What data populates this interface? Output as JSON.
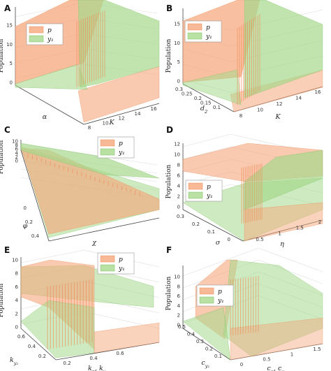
{
  "colors": {
    "p_fill": "#f5a77c",
    "p_edge": "#f08a55",
    "y_fill": "#a6d98c",
    "y_edge": "#7cc062"
  },
  "legend": {
    "p": "p",
    "y": "y₁"
  },
  "chart_data": [
    {
      "panel": "A",
      "type": "area",
      "ylabel": "Population",
      "xlabel": "α",
      "zlabel": "K",
      "z_ticks": [
        "0",
        "5",
        "10",
        "15"
      ],
      "y_ticks": [
        "8",
        "10",
        "12",
        "14",
        "16"
      ],
      "series": [
        {
          "name": "p",
          "description_values": {
            "low_K": 15,
            "high_K": 0.5
          }
        },
        {
          "name": "y₁",
          "description_values": {
            "low_K": 0,
            "high_K": 15
          }
        }
      ]
    },
    {
      "panel": "B",
      "type": "area",
      "ylabel": "Population",
      "xlabel": "d₂",
      "zlabel": "K",
      "z_ticks": [
        "0",
        "5",
        "10",
        "15"
      ],
      "x_ticks": [
        "0.1",
        "0.15",
        "0.2",
        "0.25",
        "0.3"
      ],
      "y_ticks": [
        "8",
        "10",
        "12",
        "14",
        "16"
      ],
      "series": [
        {
          "name": "p"
        },
        {
          "name": "y₁"
        }
      ]
    },
    {
      "panel": "C",
      "type": "area",
      "ylabel": "Population",
      "xlabel": "χ",
      "zlabel": "φ",
      "z_ticks": [
        "0",
        "2",
        "4",
        "6",
        "8",
        "10"
      ],
      "x_ticks": [
        "0",
        "0.2",
        "0.4"
      ],
      "series": [
        {
          "name": "p"
        },
        {
          "name": "y₁"
        }
      ]
    },
    {
      "panel": "D",
      "type": "area",
      "ylabel": "Population",
      "xlabel": "σ",
      "zlabel": "η",
      "z_ticks": [
        "0",
        "2",
        "4",
        "6",
        "8",
        "10",
        "12"
      ],
      "x_ticks": [
        "0",
        "0.1",
        "0.2",
        "0.3"
      ],
      "y_ticks": [
        "0.5",
        "1",
        "1.5",
        "2"
      ],
      "series": [
        {
          "name": "p"
        },
        {
          "name": "y₁"
        }
      ]
    },
    {
      "panel": "E",
      "type": "area",
      "ylabel": "Population",
      "xlabel": "k_{y₂}",
      "zlabel": "k_p, k_{y₁}",
      "z_ticks": [
        "0",
        "2",
        "4",
        "6",
        "8",
        "10"
      ],
      "x_ticks": [
        "0.2",
        "0.4",
        "0.6"
      ],
      "y_ticks": [
        "0.2",
        "0.4",
        "0.6"
      ],
      "series": [
        {
          "name": "p"
        },
        {
          "name": "y₁"
        }
      ]
    },
    {
      "panel": "F",
      "type": "area",
      "ylabel": "Population",
      "xlabel": "c_{y₂}",
      "zlabel": "c_p, c_{y₁}",
      "z_ticks": [
        "0",
        "2",
        "4",
        "6",
        "8",
        "10"
      ],
      "x_ticks": [
        "0.1",
        "0.2",
        "0.3",
        "0.4",
        "0.5"
      ],
      "y_ticks": [
        "0",
        "0.5",
        "1",
        "1.5"
      ],
      "series": [
        {
          "name": "p"
        },
        {
          "name": "y₁"
        }
      ]
    }
  ],
  "panels": {
    "A": {
      "letter": "A",
      "ylabel": "Population",
      "xlabel": "α",
      "zlabel": "K",
      "zticks": [
        "0",
        "5",
        "10",
        "15"
      ],
      "yticks": [
        "8",
        "10",
        "12",
        "14",
        "16"
      ]
    },
    "B": {
      "letter": "B",
      "ylabel": "Population",
      "xlabel": "d₂",
      "zlabel": "K",
      "zticks": [
        "0",
        "5",
        "10",
        "15"
      ],
      "xticks": [
        "0.1",
        "0.15",
        "0.2",
        "0.25",
        "0.3"
      ],
      "yticks": [
        "8",
        "10",
        "12",
        "14",
        "16"
      ]
    },
    "C": {
      "letter": "C",
      "ylabel": "Population",
      "xlabel": "χ",
      "zlabel": "φ",
      "zticks": [
        "0",
        "2",
        "4",
        "6",
        "8",
        "10"
      ],
      "xticks": [
        "0",
        "0.2",
        "0.4"
      ]
    },
    "D": {
      "letter": "D",
      "ylabel": "Population",
      "xlabel": "σ",
      "zlabel": "η",
      "zticks": [
        "0",
        "2",
        "4",
        "6",
        "8",
        "10",
        "12"
      ],
      "xticks": [
        "0",
        "0.1",
        "0.2",
        "0.3"
      ],
      "yticks": [
        "0.5",
        "1",
        "1.5",
        "2"
      ]
    },
    "E": {
      "letter": "E",
      "ylabel": "Population",
      "xlabel": "k",
      "xsub": "y₂",
      "zlabel": "k",
      "zsub": "p",
      "zlabel2": ", k",
      "zsub2": "y₁",
      "zticks": [
        "0",
        "2",
        "4",
        "6",
        "8",
        "10"
      ],
      "xticks": [
        "0.2",
        "0.4",
        "0.6"
      ],
      "yticks": [
        "0.2",
        "0.4",
        "0.6"
      ]
    },
    "F": {
      "letter": "F",
      "ylabel": "Population",
      "xlabel": "c",
      "xsub": "y₂",
      "zlabel": "c",
      "zsub": "p",
      "zlabel2": ", c",
      "zsub2": "y₁",
      "zticks": [
        "0",
        "2",
        "4",
        "6",
        "8",
        "10"
      ],
      "xticks": [
        "0.1",
        "0.2",
        "0.3",
        "0.4",
        "0.5"
      ],
      "yticks": [
        "0",
        "0.5",
        "1",
        "1.5"
      ]
    }
  }
}
